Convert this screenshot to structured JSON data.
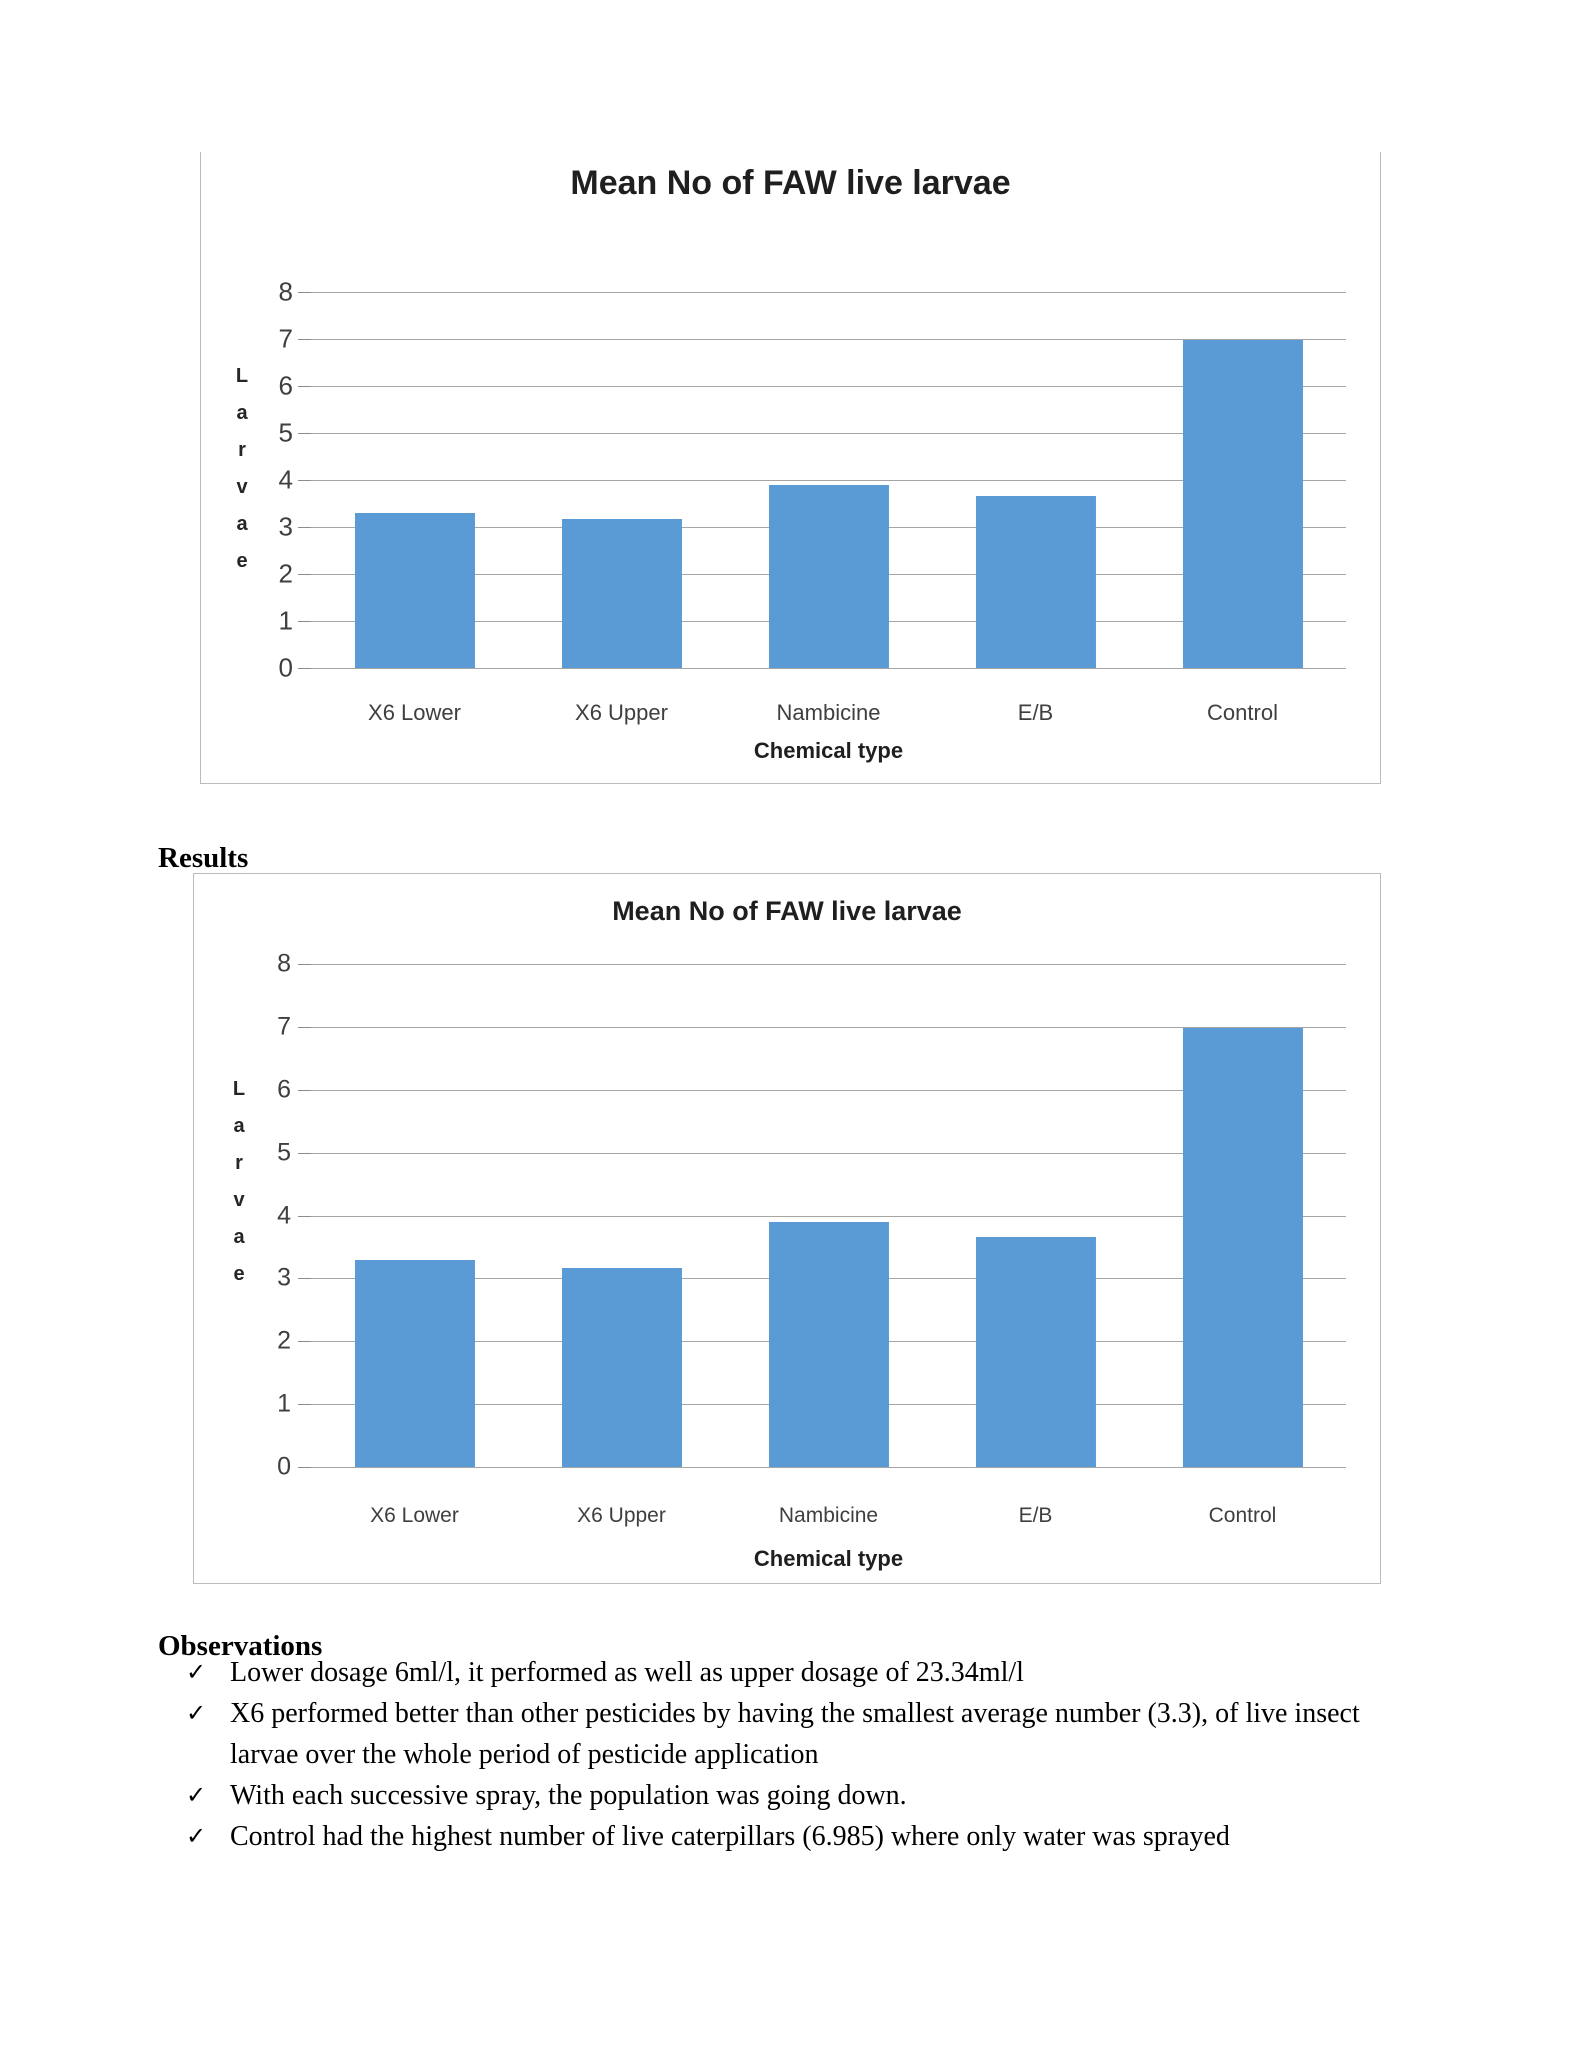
{
  "headings": {
    "results": "Results",
    "observations": "Observations"
  },
  "bullet_glyph": "✓",
  "observations": [
    "Lower dosage 6ml/l, it performed as well as upper dosage of 23.34ml/l",
    "X6 performed better than other pesticides by having the smallest average number (3.3), of live insect larvae over the whole period of pesticide application",
    "With each successive spray, the population was going down.",
    "Control had the highest number of live caterpillars (6.985) where only water was sprayed"
  ],
  "colors": {
    "bar": "#5b9bd5",
    "gridline": "#a6a6a6",
    "axis_text": "#3f3f3f",
    "title_text": "#1f1f1f"
  },
  "chart_data": [
    {
      "type": "bar",
      "title": "Mean No of FAW live larvae",
      "categories": [
        "X6 Lower",
        "X6 Upper",
        "Nambicine",
        "E/B",
        "Control"
      ],
      "values": [
        3.3,
        3.17,
        3.9,
        3.66,
        6.985
      ],
      "xlabel": "Chemical type",
      "ylabel": "Larvae",
      "ylim": [
        0,
        8
      ],
      "ytick_step": 1,
      "grid": true,
      "legend": false
    },
    {
      "type": "bar",
      "title": "Mean No of FAW live larvae",
      "categories": [
        "X6 Lower",
        "X6 Upper",
        "Nambicine",
        "E/B",
        "Control"
      ],
      "values": [
        3.3,
        3.17,
        3.9,
        3.66,
        6.985
      ],
      "xlabel": "Chemical type",
      "ylabel": "Larvae",
      "ylim": [
        0,
        8
      ],
      "ytick_step": 1,
      "grid": true,
      "legend": false
    }
  ]
}
